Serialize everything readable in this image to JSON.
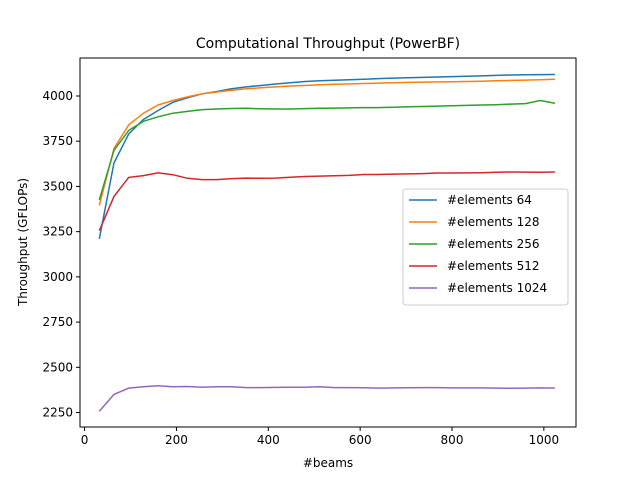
{
  "chart_data": {
    "type": "line",
    "title": "Computational Throughput (PowerBF)",
    "xlabel": "#beams",
    "ylabel": "Throughput (GFLOPs)",
    "xlim": [
      -10,
      1070
    ],
    "ylim": [
      2170,
      4210
    ],
    "x_ticks": [
      0,
      200,
      400,
      600,
      800,
      1000
    ],
    "y_ticks": [
      2250,
      2500,
      2750,
      3000,
      3250,
      3500,
      3750,
      4000
    ],
    "grid": false,
    "legend_position": "center-right",
    "x": [
      32,
      64,
      96,
      128,
      160,
      192,
      224,
      256,
      288,
      320,
      352,
      384,
      416,
      448,
      480,
      512,
      544,
      576,
      608,
      640,
      672,
      704,
      736,
      768,
      800,
      832,
      864,
      896,
      928,
      960,
      992,
      1024
    ],
    "series": [
      {
        "name": "#elements 64",
        "color": "#1f77b4",
        "values": [
          3210,
          3630,
          3790,
          3870,
          3920,
          3965,
          3990,
          4012,
          4025,
          4040,
          4050,
          4058,
          4066,
          4073,
          4080,
          4084,
          4087,
          4090,
          4093,
          4096,
          4099,
          4101,
          4103,
          4105,
          4107,
          4109,
          4111,
          4114,
          4116,
          4117,
          4118,
          4119
        ]
      },
      {
        "name": "#elements 128",
        "color": "#ff7f0e",
        "values": [
          3395,
          3710,
          3840,
          3905,
          3950,
          3975,
          3995,
          4012,
          4022,
          4032,
          4040,
          4045,
          4050,
          4055,
          4058,
          4062,
          4065,
          4067,
          4069,
          4071,
          4073,
          4075,
          4077,
          4078,
          4079,
          4080,
          4082,
          4084,
          4086,
          4088,
          4090,
          4092
        ]
      },
      {
        "name": "#elements 256",
        "color": "#2ca02c",
        "values": [
          3425,
          3700,
          3810,
          3860,
          3885,
          3905,
          3915,
          3925,
          3928,
          3931,
          3932,
          3929,
          3928,
          3928,
          3930,
          3932,
          3933,
          3934,
          3936,
          3936,
          3938,
          3940,
          3942,
          3944,
          3946,
          3948,
          3950,
          3952,
          3955,
          3958,
          3975,
          3960
        ]
      },
      {
        "name": "#elements 512",
        "color": "#d62728",
        "values": [
          3255,
          3445,
          3550,
          3560,
          3575,
          3565,
          3545,
          3538,
          3538,
          3543,
          3546,
          3545,
          3546,
          3551,
          3555,
          3557,
          3559,
          3561,
          3566,
          3566,
          3568,
          3569,
          3571,
          3574,
          3574,
          3575,
          3576,
          3578,
          3580,
          3579,
          3578,
          3580
        ]
      },
      {
        "name": "#elements 1024",
        "color": "#9467bd",
        "values": [
          2257,
          2350,
          2385,
          2392,
          2398,
          2392,
          2394,
          2390,
          2392,
          2392,
          2388,
          2388,
          2389,
          2390,
          2390,
          2392,
          2388,
          2388,
          2387,
          2385,
          2386,
          2387,
          2388,
          2388,
          2386,
          2386,
          2386,
          2385,
          2384,
          2385,
          2386,
          2385
        ]
      }
    ]
  }
}
